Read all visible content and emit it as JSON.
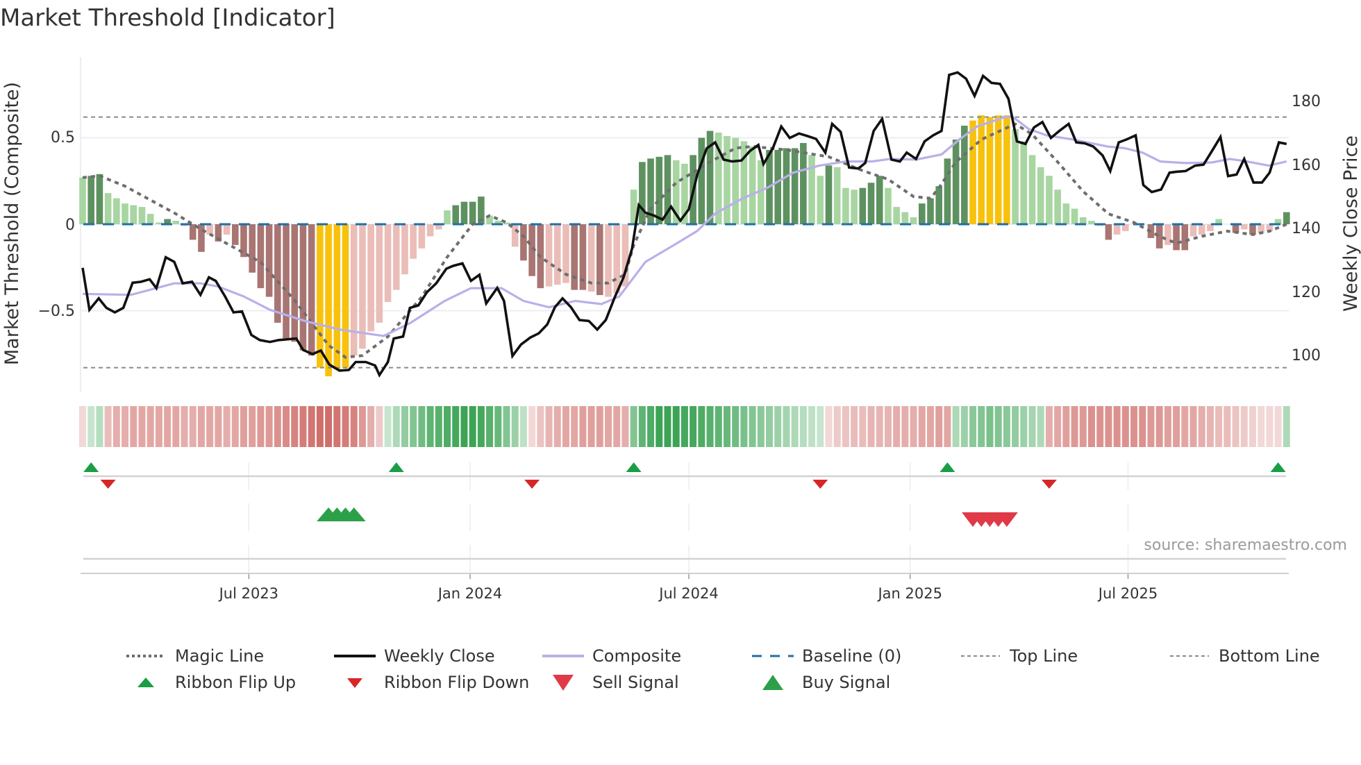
{
  "title": "Market Threshold [Indicator]",
  "source": "source: sharemaestro.com",
  "chart_data": {
    "type": "bar",
    "title": "Market Threshold [Indicator]",
    "ylabel": "Market Threshold (Composite)",
    "y2label": "Weekly Close Price",
    "ylim": [
      -0.95,
      0.95
    ],
    "y2lim": [
      88,
      194
    ],
    "yticks": [
      {
        "v": 0.5,
        "label": "0.5"
      },
      {
        "v": 0,
        "label": "0"
      },
      {
        "v": -0.5,
        "label": "−0.5"
      }
    ],
    "y2ticks": [
      {
        "v": 180,
        "label": "180"
      },
      {
        "v": 160,
        "label": "160"
      },
      {
        "v": 140,
        "label": "140"
      },
      {
        "v": 120,
        "label": "120"
      },
      {
        "v": 100,
        "label": "100"
      }
    ],
    "xticks": [
      {
        "week": 19.6,
        "label": "Jul 2023"
      },
      {
        "week": 45.7,
        "label": "Jan 2024"
      },
      {
        "week": 71.5,
        "label": "Jul 2024"
      },
      {
        "week": 97.6,
        "label": "Jan 2025"
      },
      {
        "week": 123.3,
        "label": "Jul 2025"
      }
    ],
    "weeks": 143,
    "top_line": 0.62,
    "bottom_line": -0.83,
    "baseline": 0,
    "colors": {
      "strong_up": "#5e9160",
      "weak_up": "#a8d5a2",
      "strong_down": "#a87572",
      "weak_down": "#eabdb9",
      "extreme": "#f8c20c",
      "close": "#111111",
      "composite": "#b9b0e8",
      "magic": "#6e6e6e",
      "baseline": "#1f6fa5",
      "ribbon_up": "#34a04e",
      "ribbon_down": "#c85a55",
      "flip_up": "#1a9e45",
      "flip_down": "#d62728",
      "buy": "#2ca048",
      "sell": "#e03a48"
    },
    "bars": [
      0.27,
      0.28,
      0.29,
      0.18,
      0.15,
      0.12,
      0.11,
      0.1,
      0.06,
      0.01,
      0.03,
      0.02,
      -0.01,
      -0.09,
      -0.16,
      -0.06,
      -0.1,
      -0.06,
      -0.12,
      -0.19,
      -0.28,
      -0.37,
      -0.42,
      -0.57,
      -0.66,
      -0.68,
      -0.73,
      -0.76,
      -0.83,
      -0.88,
      -0.84,
      -0.83,
      -0.76,
      -0.72,
      -0.62,
      -0.57,
      -0.45,
      -0.38,
      -0.29,
      -0.2,
      -0.14,
      -0.07,
      -0.03,
      0.08,
      0.11,
      0.13,
      0.13,
      0.16,
      0.05,
      0.02,
      0.01,
      -0.13,
      -0.21,
      -0.3,
      -0.37,
      -0.36,
      -0.35,
      -0.34,
      -0.38,
      -0.38,
      -0.39,
      -0.41,
      -0.42,
      -0.4,
      -0.36,
      0.2,
      0.36,
      0.38,
      0.39,
      0.4,
      0.37,
      0.35,
      0.4,
      0.5,
      0.54,
      0.53,
      0.51,
      0.5,
      0.48,
      0.45,
      0.37,
      0.43,
      0.43,
      0.44,
      0.44,
      0.47,
      0.4,
      0.28,
      0.34,
      0.33,
      0.21,
      0.2,
      0.21,
      0.24,
      0.28,
      0.21,
      0.1,
      0.07,
      0.04,
      0.12,
      0.15,
      0.22,
      0.38,
      0.49,
      0.57,
      0.6,
      0.63,
      0.62,
      0.63,
      0.63,
      0.55,
      0.48,
      0.4,
      0.33,
      0.28,
      0.2,
      0.12,
      0.09,
      0.04,
      0.02,
      -0.01,
      -0.09,
      -0.06,
      -0.04,
      0,
      0,
      -0.08,
      -0.14,
      -0.12,
      -0.15,
      -0.15,
      -0.07,
      -0.06,
      -0.04,
      0.03,
      0,
      -0.05,
      -0.03,
      -0.06,
      -0.05,
      -0.04,
      0.03,
      0.07
    ],
    "bar_tones": [
      "g",
      "G",
      "G",
      "g",
      "g",
      "g",
      "g",
      "g",
      "g",
      "g",
      "G",
      "g",
      "r",
      "R",
      "R",
      "r",
      "R",
      "r",
      "R",
      "R",
      "R",
      "R",
      "R",
      "R",
      "R",
      "R",
      "R",
      "R",
      "Y",
      "Y",
      "Y",
      "Y",
      "r",
      "r",
      "r",
      "r",
      "r",
      "r",
      "r",
      "r",
      "r",
      "r",
      "r",
      "g",
      "G",
      "G",
      "G",
      "G",
      "g",
      "g",
      "g",
      "r",
      "R",
      "R",
      "R",
      "r",
      "r",
      "r",
      "R",
      "R",
      "r",
      "R",
      "r",
      "r",
      "r",
      "g",
      "G",
      "G",
      "G",
      "G",
      "g",
      "g",
      "G",
      "G",
      "G",
      "g",
      "g",
      "g",
      "g",
      "g",
      "g",
      "G",
      "G",
      "G",
      "G",
      "G",
      "g",
      "g",
      "G",
      "g",
      "g",
      "g",
      "G",
      "G",
      "G",
      "g",
      "g",
      "g",
      "g",
      "G",
      "G",
      "G",
      "G",
      "G",
      "G",
      "Y",
      "Y",
      "Y",
      "Y",
      "Y",
      "g",
      "g",
      "g",
      "g",
      "g",
      "g",
      "g",
      "g",
      "g",
      "g",
      "r",
      "R",
      "r",
      "r",
      "g",
      "g",
      "R",
      "R",
      "r",
      "R",
      "R",
      "r",
      "r",
      "r",
      "g",
      "g",
      "R",
      "r",
      "R",
      "r",
      "r",
      "g",
      "G"
    ],
    "ribbon": [
      -0.1,
      0.15,
      0.25,
      -0.3,
      -0.4,
      -0.4,
      -0.45,
      -0.45,
      -0.45,
      -0.45,
      -0.45,
      -0.45,
      -0.4,
      -0.4,
      -0.45,
      -0.45,
      -0.45,
      -0.4,
      -0.45,
      -0.5,
      -0.5,
      -0.55,
      -0.55,
      -0.6,
      -0.65,
      -0.7,
      -0.75,
      -0.8,
      -0.85,
      -0.85,
      -0.8,
      -0.75,
      -0.7,
      -0.55,
      -0.4,
      -0.2,
      0.15,
      0.3,
      0.45,
      0.55,
      0.65,
      0.75,
      0.8,
      0.85,
      0.9,
      0.95,
      0.95,
      0.9,
      0.8,
      0.7,
      0.55,
      0.4,
      0.2,
      -0.1,
      -0.25,
      -0.35,
      -0.4,
      -0.45,
      -0.45,
      -0.5,
      -0.5,
      -0.5,
      -0.45,
      -0.45,
      -0.4,
      0.55,
      0.75,
      0.85,
      0.95,
      0.95,
      0.95,
      0.9,
      0.9,
      0.85,
      0.8,
      0.75,
      0.7,
      0.65,
      0.6,
      0.55,
      0.5,
      0.45,
      0.4,
      0.35,
      0.3,
      0.25,
      0.2,
      0.15,
      -0.1,
      -0.2,
      -0.25,
      -0.3,
      -0.3,
      -0.35,
      -0.35,
      -0.35,
      -0.4,
      -0.4,
      -0.4,
      -0.45,
      -0.45,
      -0.5,
      -0.45,
      0.3,
      0.4,
      0.5,
      0.55,
      0.6,
      0.55,
      0.5,
      0.45,
      0.4,
      0.35,
      0.3,
      -0.4,
      -0.45,
      -0.5,
      -0.55,
      -0.55,
      -0.6,
      -0.6,
      -0.6,
      -0.6,
      -0.6,
      -0.6,
      -0.6,
      -0.55,
      -0.55,
      -0.5,
      -0.5,
      -0.45,
      -0.45,
      -0.4,
      -0.35,
      -0.3,
      -0.3,
      -0.25,
      -0.2,
      -0.15,
      -0.1,
      -0.1,
      -0.1,
      0.3
    ],
    "weekly_close": [
      [
        0,
        127.4
      ],
      [
        0.8,
        114.2
      ],
      [
        1.9,
        117.8
      ],
      [
        2.8,
        114.8
      ],
      [
        3.8,
        113.4
      ],
      [
        4.8,
        114.8
      ],
      [
        5.9,
        122.7
      ],
      [
        6.9,
        123
      ],
      [
        7.9,
        123.8
      ],
      [
        8.7,
        121
      ],
      [
        9.8,
        130.7
      ],
      [
        10.8,
        129.3
      ],
      [
        11.8,
        122.5
      ],
      [
        12.9,
        123
      ],
      [
        13.9,
        118.9
      ],
      [
        14.9,
        124.4
      ],
      [
        15.7,
        123.3
      ],
      [
        16.8,
        118.4
      ],
      [
        17.8,
        113.4
      ],
      [
        18.8,
        113.7
      ],
      [
        19.9,
        106.3
      ],
      [
        20.9,
        104.7
      ],
      [
        22.1,
        104.1
      ],
      [
        23.1,
        104.7
      ],
      [
        24.4,
        105
      ],
      [
        25.2,
        105.2
      ],
      [
        26,
        101.6
      ],
      [
        27.1,
        100.3
      ],
      [
        28.1,
        101.4
      ],
      [
        29.1,
        97
      ],
      [
        30.3,
        95.1
      ],
      [
        31.4,
        95.3
      ],
      [
        32.2,
        97.8
      ],
      [
        33.4,
        97.8
      ],
      [
        34.5,
        96.7
      ],
      [
        35,
        93.7
      ],
      [
        36,
        97.8
      ],
      [
        36.7,
        105.2
      ],
      [
        37.8,
        105.8
      ],
      [
        38.6,
        114.8
      ],
      [
        39.6,
        115.6
      ],
      [
        40.6,
        119.7
      ],
      [
        41.7,
        122.5
      ],
      [
        42.9,
        127.1
      ],
      [
        43.7,
        128
      ],
      [
        44.8,
        128.8
      ],
      [
        45.8,
        123.3
      ],
      [
        46.8,
        125.2
      ],
      [
        47.6,
        116.2
      ],
      [
        48.9,
        121.1
      ],
      [
        49.7,
        117
      ],
      [
        50.7,
        99.7
      ],
      [
        51.7,
        103.3
      ],
      [
        52.8,
        105.5
      ],
      [
        53.8,
        106.8
      ],
      [
        54.8,
        109.6
      ],
      [
        55.7,
        115
      ],
      [
        56.6,
        117.8
      ],
      [
        57.6,
        115
      ],
      [
        58.6,
        111
      ],
      [
        59.7,
        110.7
      ],
      [
        60.7,
        108
      ],
      [
        61.7,
        111
      ],
      [
        62.8,
        118.4
      ],
      [
        63.8,
        124.4
      ],
      [
        64.8,
        133.4
      ],
      [
        65.6,
        147.1
      ],
      [
        66.4,
        144.7
      ],
      [
        67.4,
        143.8
      ],
      [
        68.4,
        142.5
      ],
      [
        69.4,
        146.6
      ],
      [
        70.5,
        142.2
      ],
      [
        71.5,
        145.8
      ],
      [
        72.5,
        156.7
      ],
      [
        73.6,
        164.9
      ],
      [
        74.6,
        166.8
      ],
      [
        75.6,
        161.4
      ],
      [
        76.6,
        160.8
      ],
      [
        77.7,
        161.1
      ],
      [
        78.7,
        164.1
      ],
      [
        79.7,
        166
      ],
      [
        80.3,
        160
      ],
      [
        81.4,
        164.9
      ],
      [
        82.4,
        171.8
      ],
      [
        83.4,
        168.2
      ],
      [
        84.5,
        169.6
      ],
      [
        85.5,
        168.8
      ],
      [
        86.5,
        167.9
      ],
      [
        87.6,
        163.6
      ],
      [
        88.4,
        172.6
      ],
      [
        89.4,
        170.1
      ],
      [
        90.4,
        158.9
      ],
      [
        91.5,
        158.6
      ],
      [
        92.3,
        160.3
      ],
      [
        93.3,
        170.4
      ],
      [
        94.3,
        174.2
      ],
      [
        95.4,
        161.4
      ],
      [
        96.4,
        160.8
      ],
      [
        97.2,
        163.6
      ],
      [
        98.3,
        161.6
      ],
      [
        99.3,
        167.1
      ],
      [
        100.3,
        169
      ],
      [
        101.3,
        170.4
      ],
      [
        102.2,
        188
      ],
      [
        103.2,
        188.8
      ],
      [
        104.2,
        186.8
      ],
      [
        105.2,
        181.4
      ],
      [
        106.2,
        187.7
      ],
      [
        107.2,
        185.5
      ],
      [
        108.2,
        185.2
      ],
      [
        109.2,
        180.5
      ],
      [
        110.2,
        167.1
      ],
      [
        111.2,
        166.3
      ],
      [
        112.2,
        171.5
      ],
      [
        113.2,
        173.2
      ],
      [
        114.2,
        168.2
      ],
      [
        115.2,
        170.4
      ],
      [
        116.3,
        172.6
      ],
      [
        117.2,
        166.8
      ],
      [
        118.2,
        166.5
      ],
      [
        119.2,
        165.5
      ],
      [
        120.3,
        162.7
      ],
      [
        121.2,
        157.8
      ],
      [
        122.2,
        166.8
      ],
      [
        123.1,
        167.7
      ],
      [
        124.2,
        169
      ],
      [
        125.1,
        153.4
      ],
      [
        126.1,
        151.2
      ],
      [
        127.2,
        152
      ],
      [
        128.2,
        157.3
      ],
      [
        129.1,
        157.6
      ],
      [
        130.1,
        157.8
      ],
      [
        131.2,
        159.5
      ],
      [
        132.2,
        159.8
      ],
      [
        133.2,
        164.1
      ],
      [
        134.2,
        168.5
      ],
      [
        135.1,
        156.2
      ],
      [
        136.1,
        156.7
      ],
      [
        137,
        161.6
      ],
      [
        138.1,
        154.2
      ],
      [
        139.1,
        154.2
      ],
      [
        140,
        157.3
      ],
      [
        141.1,
        166.8
      ],
      [
        142,
        166.3
      ]
    ],
    "composite": [
      [
        0,
        119.2
      ],
      [
        5.7,
        118.9
      ],
      [
        10.8,
        122.5
      ],
      [
        13.9,
        122.5
      ],
      [
        15.9,
        121.6
      ],
      [
        19,
        118.4
      ],
      [
        22.1,
        114.2
      ],
      [
        26.2,
        110.7
      ],
      [
        30.3,
        108
      ],
      [
        35.5,
        106
      ],
      [
        38.6,
        110
      ],
      [
        42.7,
        117
      ],
      [
        45.8,
        121
      ],
      [
        49.4,
        121
      ],
      [
        52,
        117
      ],
      [
        55,
        115
      ],
      [
        58.1,
        117
      ],
      [
        61.2,
        116
      ],
      [
        63.3,
        118.4
      ],
      [
        66.4,
        129.3
      ],
      [
        69.4,
        134
      ],
      [
        72.5,
        139
      ],
      [
        74.6,
        144.4
      ],
      [
        77.7,
        149
      ],
      [
        80.8,
        152.6
      ],
      [
        83.8,
        157.3
      ],
      [
        86.9,
        159.5
      ],
      [
        90,
        160.8
      ],
      [
        93.1,
        160.8
      ],
      [
        95.2,
        161.6
      ],
      [
        98.3,
        161.4
      ],
      [
        101.3,
        163
      ],
      [
        103.4,
        167.7
      ],
      [
        105.5,
        171.8
      ],
      [
        108.5,
        174.5
      ],
      [
        109.6,
        175
      ],
      [
        111.6,
        171
      ],
      [
        113.7,
        169
      ],
      [
        116.8,
        167.7
      ],
      [
        120.9,
        165.5
      ],
      [
        122.9,
        165
      ],
      [
        125,
        163.6
      ],
      [
        127.1,
        160.8
      ],
      [
        130.1,
        160.3
      ],
      [
        133.2,
        160.5
      ],
      [
        135.3,
        161.6
      ],
      [
        137.3,
        160.8
      ],
      [
        139.9,
        159.5
      ],
      [
        142,
        160.8
      ]
    ],
    "magic_line": [
      [
        0,
        0.27
      ],
      [
        2,
        0.28
      ],
      [
        5,
        0.22
      ],
      [
        11,
        0.06
      ],
      [
        14,
        -0.03
      ],
      [
        21,
        -0.22
      ],
      [
        25,
        -0.44
      ],
      [
        29,
        -0.7
      ],
      [
        31,
        -0.77
      ],
      [
        33,
        -0.76
      ],
      [
        36,
        -0.65
      ],
      [
        40,
        -0.42
      ],
      [
        43,
        -0.19
      ],
      [
        46,
        0
      ],
      [
        48,
        0.05
      ],
      [
        50,
        0.01
      ],
      [
        52,
        -0.07
      ],
      [
        54,
        -0.19
      ],
      [
        57,
        -0.29
      ],
      [
        60,
        -0.34
      ],
      [
        62,
        -0.34
      ],
      [
        64,
        -0.29
      ],
      [
        65,
        -0.12
      ],
      [
        67,
        0.09
      ],
      [
        70,
        0.24
      ],
      [
        74,
        0.36
      ],
      [
        77,
        0.44
      ],
      [
        79,
        0.45
      ],
      [
        83,
        0.43
      ],
      [
        88,
        0.39
      ],
      [
        92,
        0.31
      ],
      [
        95,
        0.26
      ],
      [
        98,
        0.16
      ],
      [
        100,
        0.15
      ],
      [
        101,
        0.21
      ],
      [
        103,
        0.36
      ],
      [
        106,
        0.49
      ],
      [
        110,
        0.58
      ],
      [
        112,
        0.52
      ],
      [
        115,
        0.36
      ],
      [
        118,
        0.19
      ],
      [
        121,
        0.06
      ],
      [
        124,
        0.01
      ],
      [
        127,
        -0.07
      ],
      [
        129,
        -0.11
      ],
      [
        132,
        -0.07
      ],
      [
        135,
        -0.04
      ],
      [
        138,
        -0.06
      ],
      [
        140,
        -0.04
      ],
      [
        142,
        0
      ]
    ],
    "ribbon_flip_up": [
      1,
      37,
      65,
      102,
      141
    ],
    "ribbon_flip_down": [
      3,
      53,
      87,
      114
    ],
    "buy_signals": [
      29,
      30,
      31,
      32
    ],
    "sell_signals": [
      105,
      106,
      107,
      108,
      109
    ],
    "legend": [
      {
        "label": "Magic Line",
        "symbol": "dotted"
      },
      {
        "label": "Weekly Close",
        "symbol": "line-black"
      },
      {
        "label": "Composite",
        "symbol": "line-lavender"
      },
      {
        "label": "Baseline (0)",
        "symbol": "dashed-blue"
      },
      {
        "label": "Top Line",
        "symbol": "dotted-thin"
      },
      {
        "label": "Bottom Line",
        "symbol": "dotted-thin"
      },
      {
        "label": "Ribbon Flip Up",
        "symbol": "triangle-up-small"
      },
      {
        "label": "Ribbon Flip Down",
        "symbol": "triangle-down-small"
      },
      {
        "label": "Sell Signal",
        "symbol": "triangle-down"
      },
      {
        "label": "Buy Signal",
        "symbol": "triangle-up"
      }
    ],
    "legend_position": "bottom"
  }
}
